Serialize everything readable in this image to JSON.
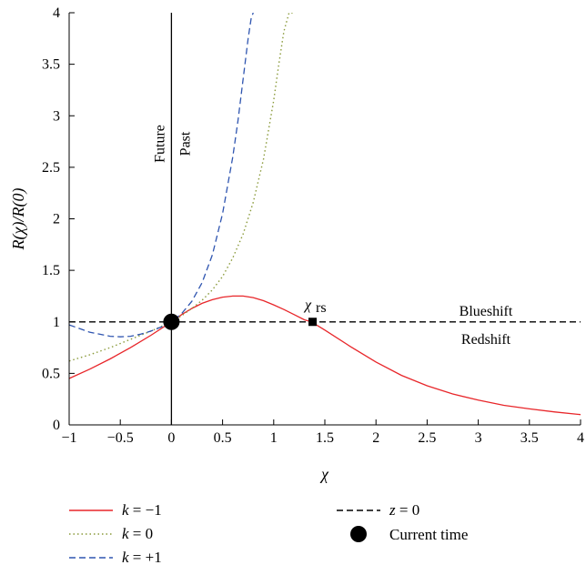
{
  "chart_data": {
    "type": "line",
    "xlabel": "χ",
    "ylabel": "R(χ)/R(0)",
    "xlim": [
      -1,
      4
    ],
    "ylim": [
      0,
      4
    ],
    "x_ticks": [
      -1,
      -0.5,
      0,
      0.5,
      1,
      1.5,
      2,
      2.5,
      3,
      3.5,
      4
    ],
    "x_tick_labels": [
      "−1",
      "−0.5",
      "0",
      "0.5",
      "1",
      "1.5",
      "2",
      "2.5",
      "3",
      "3.5",
      "4"
    ],
    "y_ticks": [
      0,
      0.5,
      1,
      1.5,
      2,
      2.5,
      3,
      3.5,
      4
    ],
    "y_tick_labels": [
      "0",
      "0.5",
      "1",
      "1.5",
      "2",
      "2.5",
      "3",
      "3.5",
      "4"
    ],
    "grid": false,
    "legend_position": "bottom",
    "series": [
      {
        "name": "k = −1",
        "label_parts": {
          "var": "k",
          "rest": " = −1"
        },
        "style": "solid",
        "color": "#e8262a",
        "x": [
          -1,
          -0.8,
          -0.6,
          -0.4,
          -0.2,
          0,
          0.1,
          0.2,
          0.3,
          0.4,
          0.5,
          0.6,
          0.7,
          0.8,
          0.9,
          1.0,
          1.1,
          1.2,
          1.3,
          1.37,
          1.5,
          1.75,
          2.0,
          2.25,
          2.5,
          2.75,
          3.0,
          3.25,
          3.5,
          3.75,
          4.0
        ],
        "y": [
          0.45,
          0.54,
          0.64,
          0.75,
          0.87,
          1.0,
          1.07,
          1.13,
          1.18,
          1.215,
          1.24,
          1.25,
          1.25,
          1.235,
          1.205,
          1.165,
          1.12,
          1.07,
          1.02,
          1.0,
          0.92,
          0.76,
          0.61,
          0.48,
          0.38,
          0.3,
          0.24,
          0.19,
          0.155,
          0.125,
          0.1
        ]
      },
      {
        "name": "k = 0",
        "label_parts": {
          "var": "k",
          "rest": " = 0"
        },
        "style": "dotted",
        "color": "#8a9a3a",
        "x": [
          -1,
          -0.8,
          -0.6,
          -0.4,
          -0.2,
          0,
          0.1,
          0.2,
          0.3,
          0.4,
          0.5,
          0.6,
          0.7,
          0.8,
          0.9,
          1.0,
          1.05,
          1.1,
          1.15,
          1.2
        ],
        "y": [
          0.62,
          0.68,
          0.75,
          0.83,
          0.91,
          1.0,
          1.06,
          1.13,
          1.21,
          1.31,
          1.44,
          1.62,
          1.85,
          2.16,
          2.58,
          3.15,
          3.5,
          3.82,
          4.0,
          4.0
        ]
      },
      {
        "name": "k = +1",
        "label_parts": {
          "var": "k",
          "rest": " = +1"
        },
        "style": "dashed",
        "color": "#2f55b0",
        "x": [
          -1,
          -0.8,
          -0.6,
          -0.5,
          -0.4,
          -0.3,
          -0.2,
          -0.1,
          0,
          0.1,
          0.2,
          0.3,
          0.4,
          0.5,
          0.6,
          0.65,
          0.7,
          0.75,
          0.78,
          0.8
        ],
        "y": [
          0.97,
          0.9,
          0.86,
          0.855,
          0.86,
          0.88,
          0.91,
          0.95,
          1.0,
          1.08,
          1.2,
          1.38,
          1.65,
          2.05,
          2.6,
          2.95,
          3.35,
          3.75,
          3.95,
          4.0
        ]
      },
      {
        "name": "z = 0",
        "label_parts": {
          "var": "z",
          "rest": " = 0"
        },
        "style": "dashed",
        "color": "#000000",
        "x": [
          -1,
          4
        ],
        "y": [
          1,
          1
        ]
      }
    ],
    "markers": [
      {
        "name": "Current time",
        "x": 0,
        "y": 1,
        "shape": "circle",
        "color": "#000000"
      },
      {
        "name": "χrs",
        "x": 1.38,
        "y": 1,
        "shape": "square",
        "color": "#000000"
      }
    ],
    "vertical_line": {
      "x": 0,
      "color": "#000000"
    },
    "annotations": {
      "future": "Future",
      "past": "Past",
      "blueshift": "Blueshift",
      "redshift": "Redshift",
      "chi_rs_main": "χ",
      "chi_rs_sub": "rs"
    },
    "legend": {
      "current_time": "Current time"
    }
  }
}
